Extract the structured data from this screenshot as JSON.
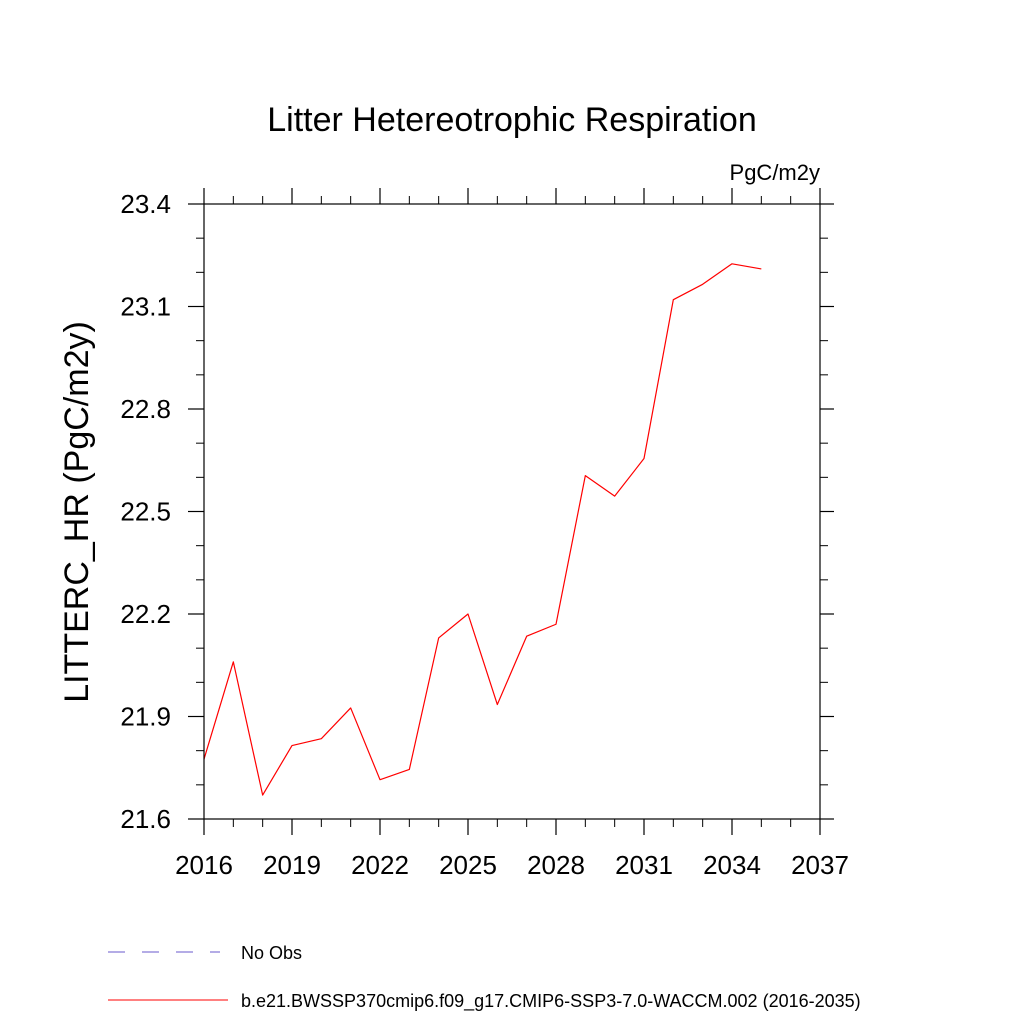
{
  "chart_data": {
    "type": "line",
    "title": "Litter Hetereotrophic Respiration",
    "units_label": "PgC/m2y",
    "ylabel": "LITTERC_HR  (PgC/m2y)",
    "xlabel": "",
    "xlim": [
      2016,
      2037
    ],
    "ylim": [
      21.6,
      23.4
    ],
    "x_ticks": [
      "2016",
      "2019",
      "2022",
      "2025",
      "2028",
      "2031",
      "2034",
      "2037"
    ],
    "y_ticks": [
      "21.6",
      "21.9",
      "22.2",
      "22.5",
      "22.8",
      "23.1",
      "23.4"
    ],
    "series": [
      {
        "name": "b.e21.BWSSP370cmip6.f09_g17.CMIP6-SSP3-7.0-WACCM.002 (2016-2035)",
        "color": "#ff0000",
        "x": [
          2016,
          2017,
          2018,
          2019,
          2020,
          2021,
          2022,
          2023,
          2024,
          2025,
          2026,
          2027,
          2028,
          2029,
          2030,
          2031,
          2032,
          2033,
          2034,
          2035
        ],
        "values": [
          21.775,
          22.06,
          21.67,
          21.815,
          21.835,
          21.925,
          21.715,
          21.745,
          22.13,
          22.2,
          21.935,
          22.135,
          22.17,
          22.605,
          22.545,
          22.655,
          23.12,
          23.165,
          23.225,
          23.21
        ]
      }
    ],
    "legend": [
      {
        "label": "No Obs",
        "color": "#6a5acd",
        "style": "dashed"
      },
      {
        "label": "b.e21.BWSSP370cmip6.f09_g17.CMIP6-SSP3-7.0-WACCM.002 (2016-2035)",
        "color": "#ff0000",
        "style": "solid"
      }
    ],
    "legend_position": "bottom-left",
    "grid": false
  }
}
